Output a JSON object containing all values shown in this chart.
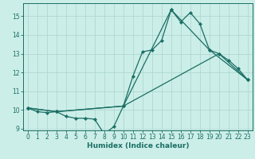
{
  "xlabel": "Humidex (Indice chaleur)",
  "xlim": [
    -0.5,
    23.5
  ],
  "ylim": [
    8.9,
    15.7
  ],
  "yticks": [
    9,
    10,
    11,
    12,
    13,
    14,
    15
  ],
  "xticks": [
    0,
    1,
    2,
    3,
    4,
    5,
    6,
    7,
    8,
    9,
    10,
    11,
    12,
    13,
    14,
    15,
    16,
    17,
    18,
    19,
    20,
    21,
    22,
    23
  ],
  "bg_color": "#cceee8",
  "grid_color": "#aad4ce",
  "line_color": "#1a6e64",
  "line1_x": [
    0,
    1,
    2,
    3,
    4,
    5,
    6,
    7,
    8,
    9,
    10,
    11,
    12,
    13,
    14,
    15,
    16,
    17,
    18,
    19,
    20,
    21,
    22,
    23
  ],
  "line1_y": [
    10.1,
    9.9,
    9.85,
    9.9,
    9.65,
    9.55,
    9.55,
    9.5,
    8.7,
    9.1,
    10.2,
    11.8,
    13.1,
    13.2,
    13.7,
    15.35,
    14.7,
    15.2,
    14.6,
    13.2,
    13.0,
    12.65,
    12.2,
    11.6
  ],
  "line2_x": [
    0,
    3,
    10,
    15,
    19,
    23
  ],
  "line2_y": [
    10.1,
    9.9,
    10.2,
    15.35,
    13.2,
    11.6
  ],
  "line3_x": [
    0,
    3,
    10,
    20,
    23
  ],
  "line3_y": [
    10.1,
    9.9,
    10.2,
    13.0,
    11.6
  ],
  "tick_fontsize": 5.5,
  "xlabel_fontsize": 6.5
}
